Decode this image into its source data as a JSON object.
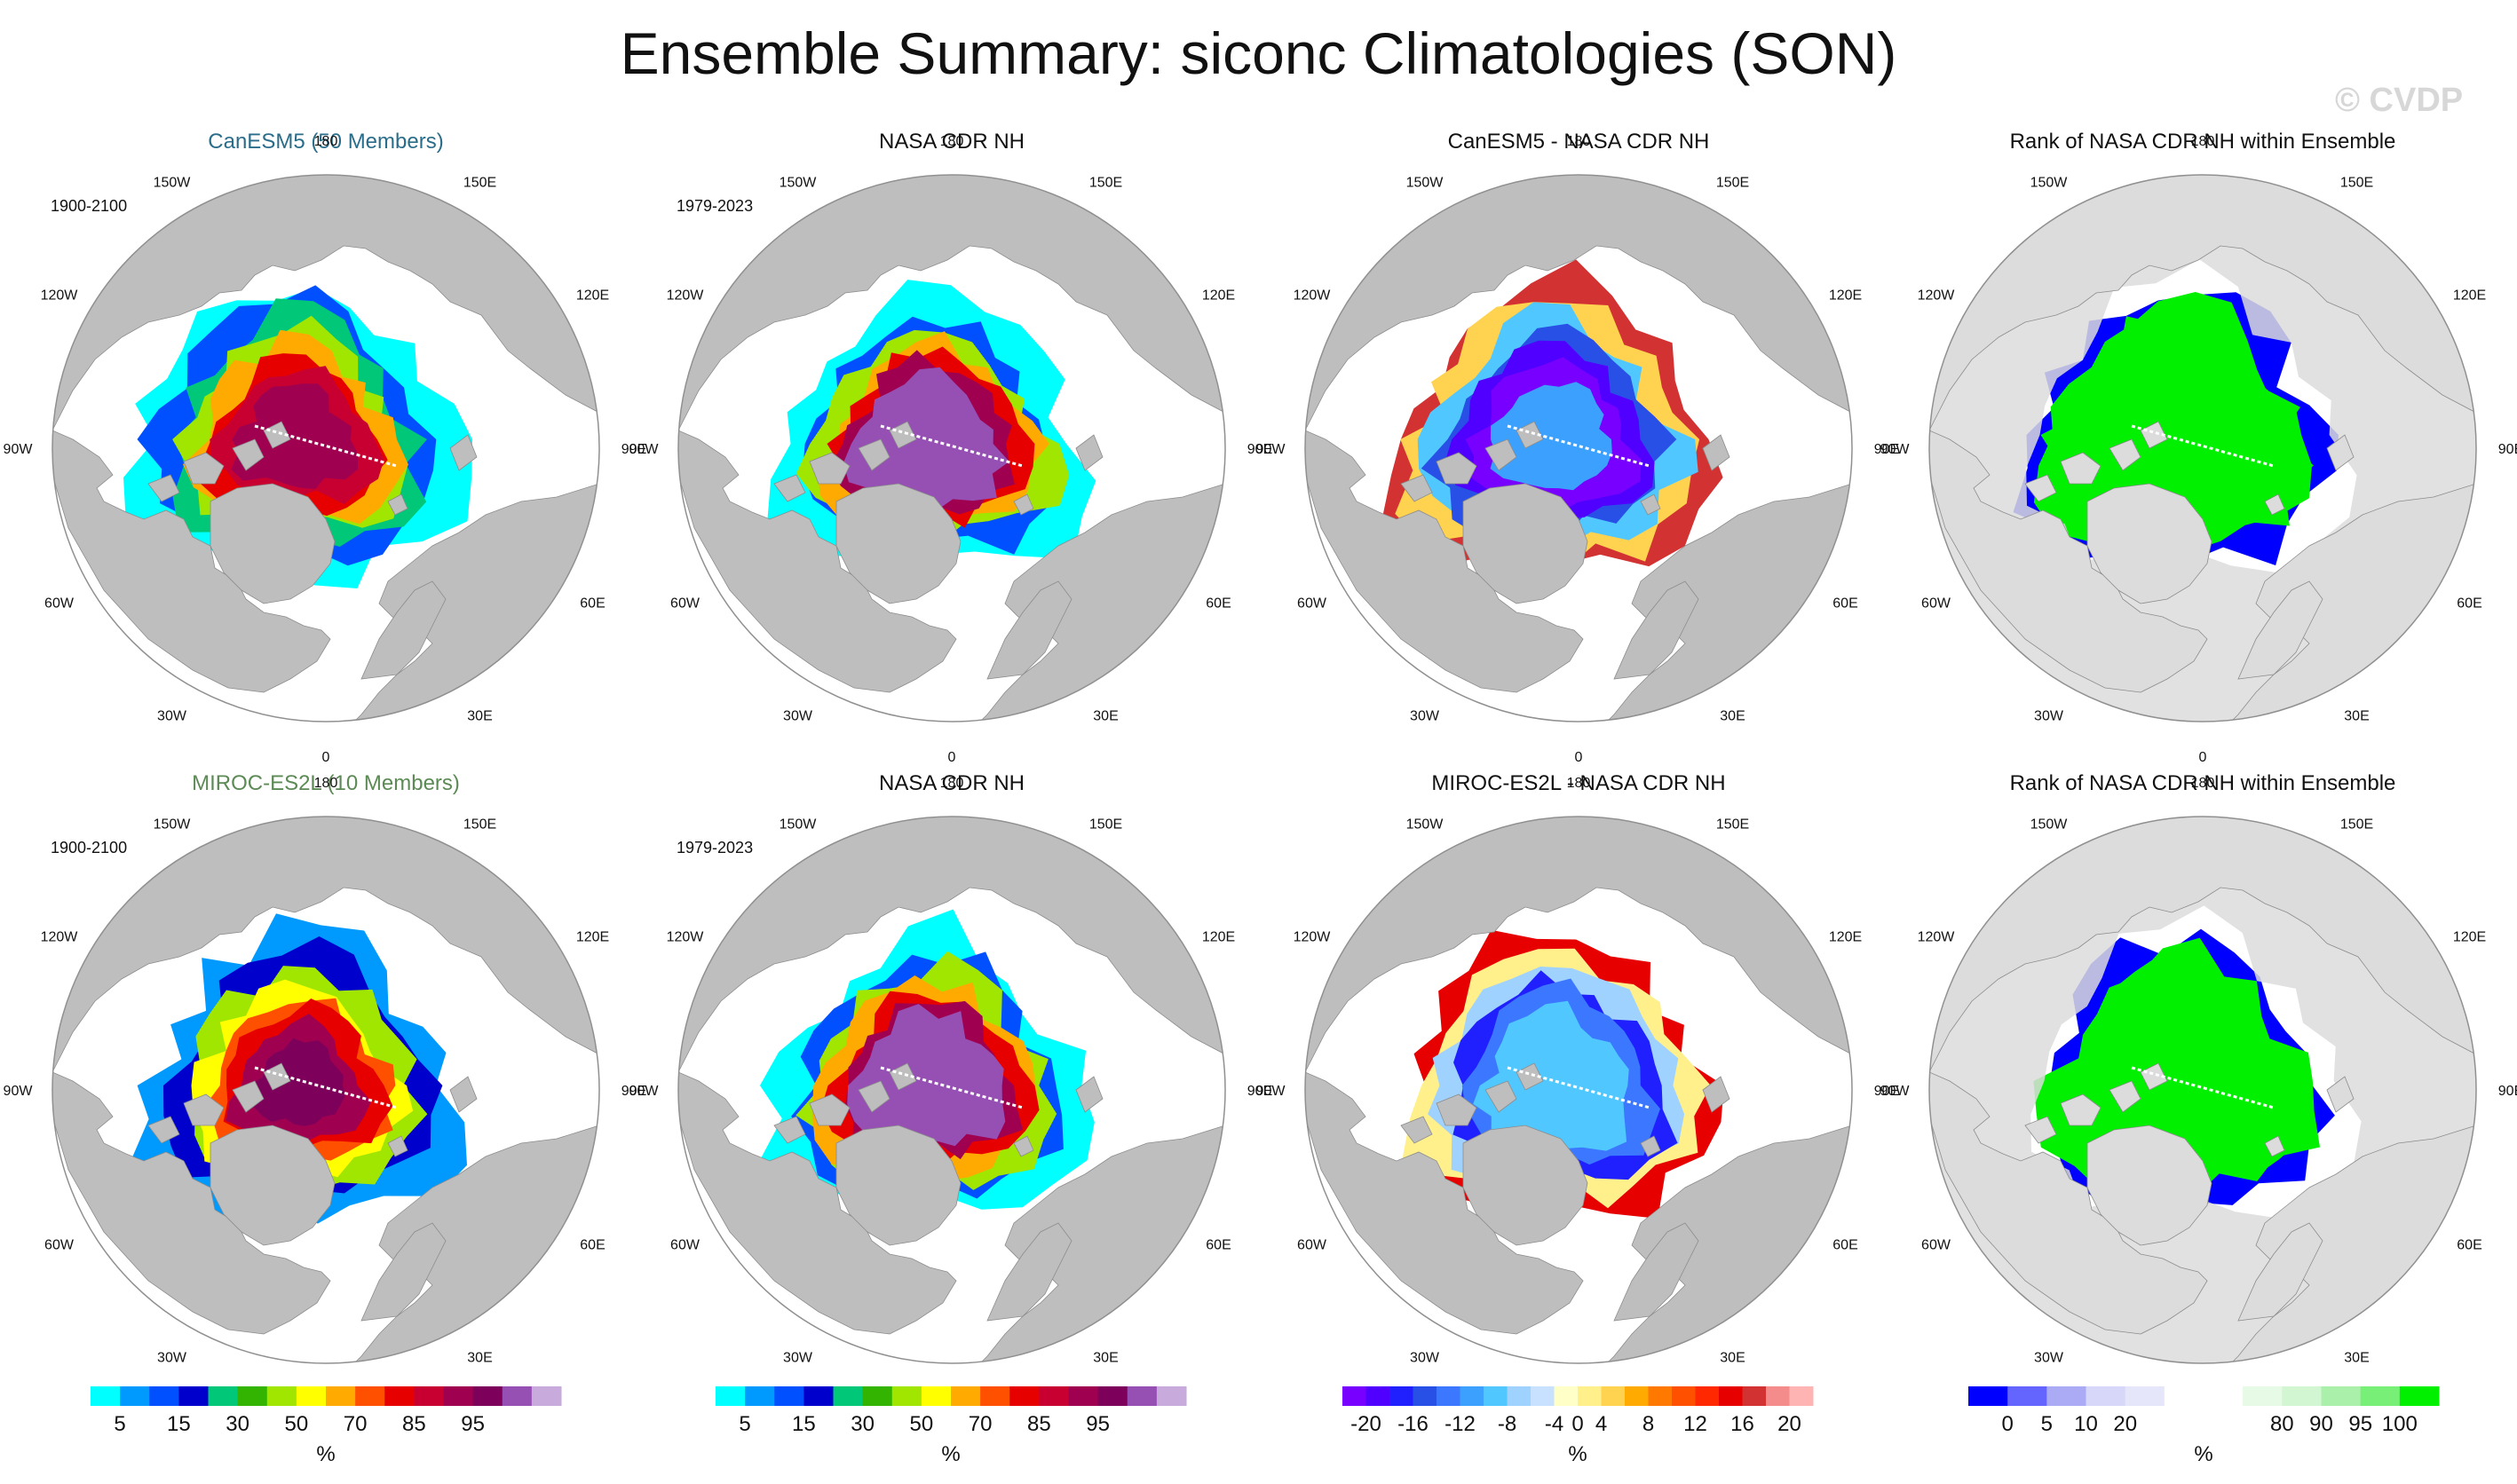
{
  "title": "Ensemble Summary: siconc Climatologies (SON)",
  "watermark": "© CVDP",
  "colors": {
    "land": "#bebebe",
    "land_light": "#dcdcdc",
    "ocean": "#ffffff",
    "canesm_title": "#2a6d8a",
    "miroc_title": "#5c8a55"
  },
  "panels": [
    {
      "title": "CanESM5 (50 Members)",
      "period": "1900-2100",
      "kind": "conc",
      "variant": "model1"
    },
    {
      "title": "NASA CDR NH",
      "period": "1979-2023",
      "kind": "conc",
      "variant": "obs"
    },
    {
      "title": "CanESM5 - NASA CDR NH",
      "period": "",
      "kind": "diff",
      "variant": "diff1"
    },
    {
      "title": "Rank of NASA CDR NH within Ensemble",
      "period": "",
      "kind": "rank",
      "variant": "rank1"
    },
    {
      "title": "MIROC-ES2L (10 Members)",
      "period": "1900-2100",
      "kind": "conc",
      "variant": "model2"
    },
    {
      "title": "NASA CDR NH",
      "period": "1979-2023",
      "kind": "conc",
      "variant": "obs"
    },
    {
      "title": "MIROC-ES2L - NASA CDR NH",
      "period": "",
      "kind": "diff",
      "variant": "diff2"
    },
    {
      "title": "Rank of NASA CDR NH within Ensemble",
      "period": "",
      "kind": "rank",
      "variant": "rank2"
    }
  ],
  "longitude_labels": [
    "180",
    "150W",
    "150E",
    "120W",
    "120E",
    "90W",
    "90E",
    "60W",
    "60E",
    "30W",
    "30E",
    "0"
  ],
  "chart_data": {
    "type": "heatmap",
    "projection": "north polar stereographic",
    "colorbars": [
      {
        "id": "conc",
        "unit": "%",
        "colors": [
          "#00ffff",
          "#009aff",
          "#0050ff",
          "#0000cd",
          "#00c878",
          "#32b400",
          "#a0e600",
          "#ffff00",
          "#ffaa00",
          "#ff5000",
          "#e60000",
          "#c80032",
          "#a00050",
          "#7d005a",
          "#9650b4",
          "#c8aadc"
        ],
        "ticks": [
          "5",
          "15",
          "30",
          "50",
          "70",
          "85",
          "95"
        ],
        "tick_bounds": [
          1,
          3,
          5,
          7,
          9,
          11,
          13
        ]
      },
      {
        "id": "diff",
        "unit": "%",
        "colors": [
          "#7800ff",
          "#5000ff",
          "#2020ff",
          "#2850e6",
          "#3c78ff",
          "#3ca0ff",
          "#50c8ff",
          "#a0d2ff",
          "#c8e1ff",
          "#ffffc8",
          "#fff08c",
          "#ffd250",
          "#ffaa00",
          "#ff7800",
          "#ff5000",
          "#ff2800",
          "#e60000",
          "#d23232",
          "#f58c8c",
          "#ffb4b4"
        ],
        "ticks": [
          "-20",
          "-16",
          "-12",
          "-8",
          "-4",
          "0",
          "4",
          "8",
          "12",
          "16",
          "20"
        ],
        "tick_bounds": [
          1,
          3,
          5,
          7,
          9,
          10,
          11,
          13,
          15,
          17,
          19
        ]
      },
      {
        "id": "rank",
        "unit": "%",
        "colors": [
          "#0000ff",
          "#6464ff",
          "#aaaaf5",
          "#d7d7fa",
          "#e6e6fa",
          "#ffffff",
          "#ffffff",
          "#e6fae6",
          "#d2f5d2",
          "#aaf0aa",
          "#78f078",
          "#00f000"
        ],
        "ticks": [
          "0",
          "5",
          "10",
          "20",
          "80",
          "90",
          "95",
          "100"
        ],
        "tick_bounds": [
          1,
          2,
          3,
          4,
          8,
          9,
          10,
          11
        ]
      }
    ]
  }
}
